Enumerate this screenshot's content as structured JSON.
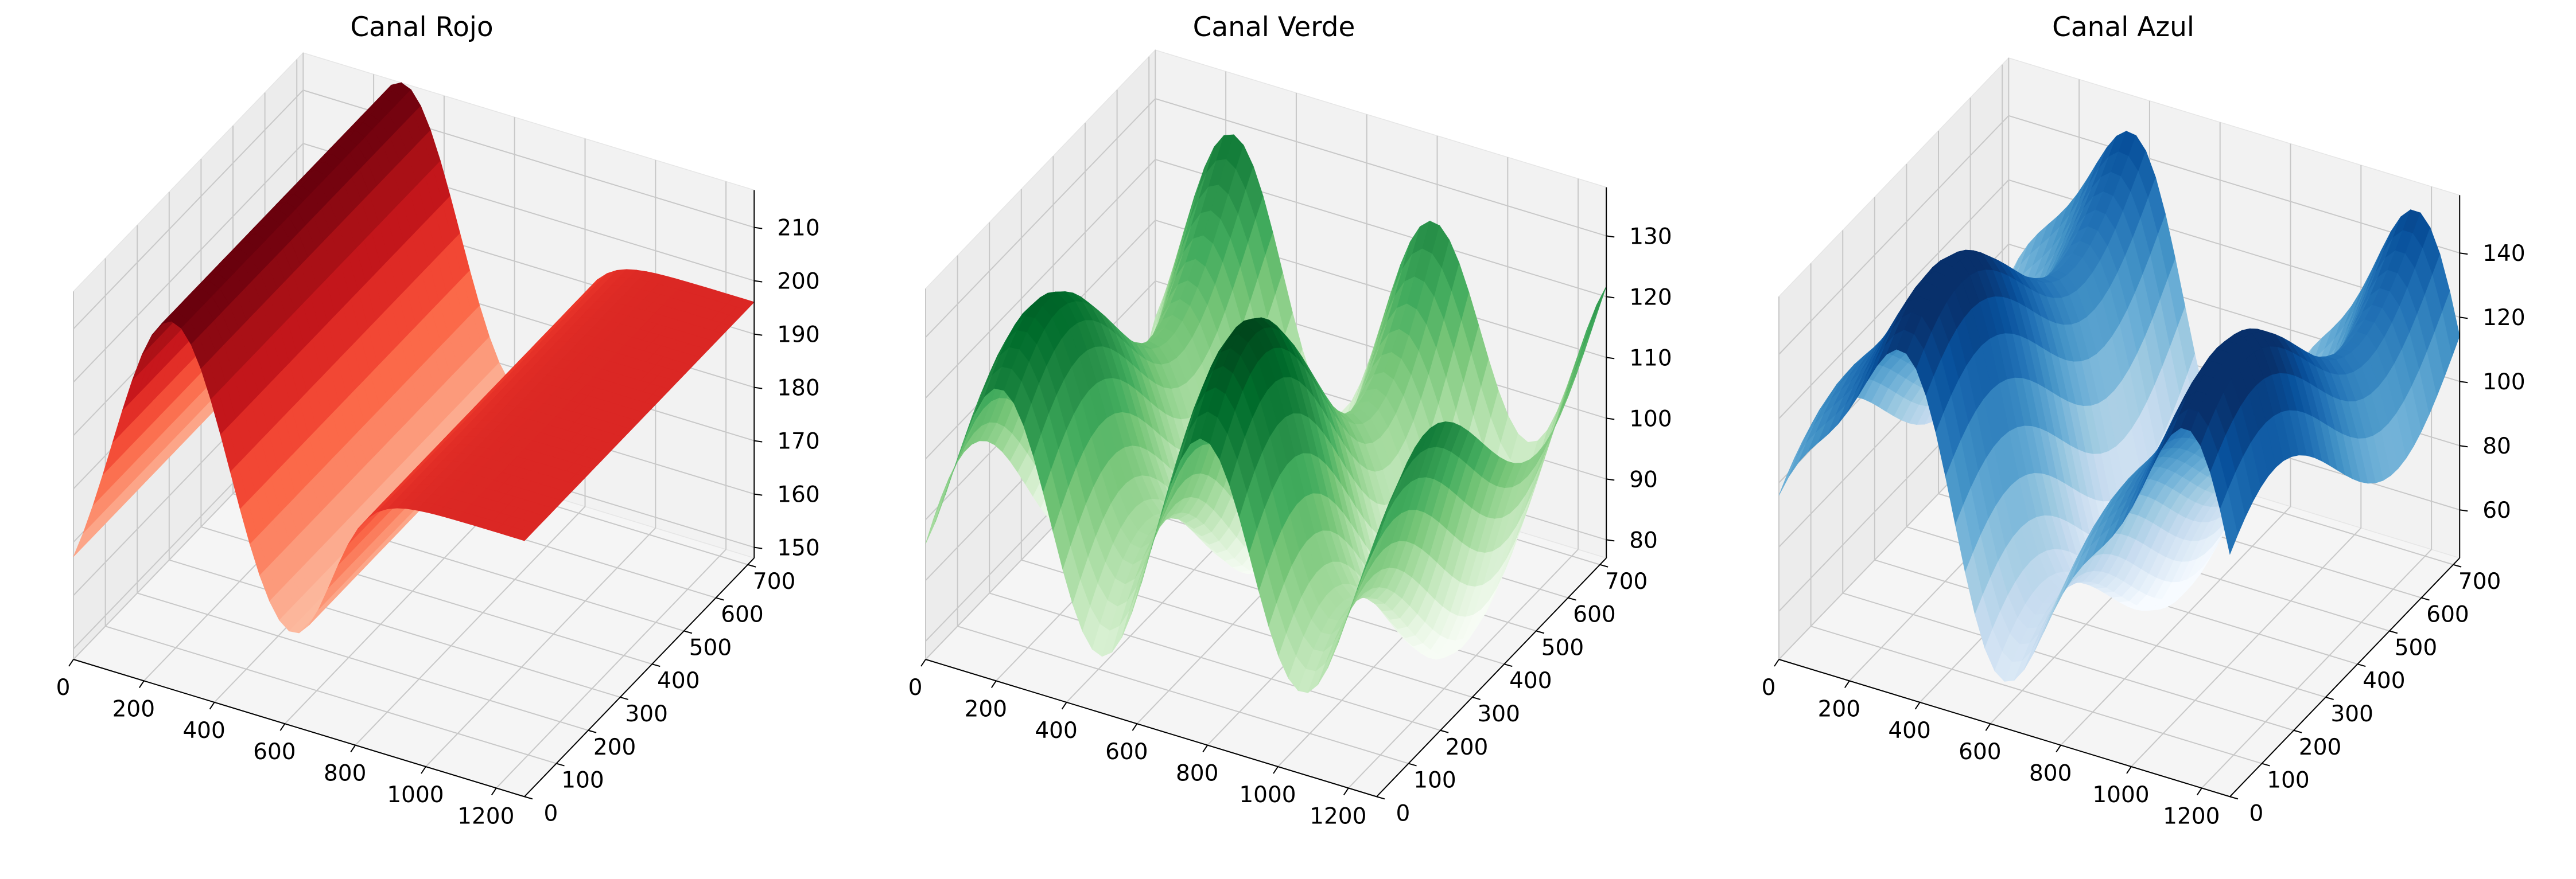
{
  "figure": {
    "panels": [
      {
        "title": "Canal Rojo",
        "colormap": "Reds"
      },
      {
        "title": "Canal Verde",
        "colormap": "Greens"
      },
      {
        "title": "Canal Azul",
        "colormap": "Blues"
      }
    ]
  },
  "chart_data": [
    {
      "type": "surface3d",
      "title": "Canal Rojo",
      "colormap": "Reds",
      "x_ticks": [
        0,
        200,
        400,
        600,
        800,
        1000,
        1200
      ],
      "y_ticks": [
        0,
        100,
        200,
        300,
        400,
        500,
        600,
        700
      ],
      "z_ticks": [
        150,
        160,
        170,
        180,
        190,
        200,
        210
      ],
      "xlim": [
        0,
        1280
      ],
      "ylim": [
        0,
        720
      ],
      "zlim": [
        148,
        217
      ],
      "surface_profile": {
        "description_axis": "x",
        "x": [
          0,
          100,
          200,
          300,
          400,
          500,
          550,
          600,
          650,
          700,
          800,
          900,
          1000,
          1100,
          1200,
          1280
        ],
        "z": [
          185,
          200,
          213,
          217,
          210,
          180,
          165,
          152,
          150,
          158,
          185,
          190,
          191,
          193,
          195,
          196
        ]
      },
      "grid": true
    },
    {
      "type": "surface3d",
      "title": "Canal Verde",
      "colormap": "Greens",
      "x_ticks": [
        0,
        200,
        400,
        600,
        800,
        1000,
        1200
      ],
      "y_ticks": [
        0,
        100,
        200,
        300,
        400,
        500,
        600,
        700
      ],
      "z_ticks": [
        80,
        90,
        100,
        110,
        120,
        130
      ],
      "xlim": [
        0,
        1280
      ],
      "ylim": [
        0,
        720
      ],
      "zlim": [
        77,
        138
      ],
      "grid": true
    },
    {
      "type": "surface3d",
      "title": "Canal Azul",
      "colormap": "Blues",
      "x_ticks": [
        0,
        200,
        400,
        600,
        800,
        1000,
        1200
      ],
      "y_ticks": [
        0,
        100,
        200,
        300,
        400,
        500,
        600,
        700
      ],
      "z_ticks": [
        60,
        80,
        100,
        120,
        140
      ],
      "xlim": [
        0,
        1280
      ],
      "ylim": [
        0,
        720
      ],
      "zlim": [
        45,
        158
      ],
      "grid": true
    }
  ]
}
